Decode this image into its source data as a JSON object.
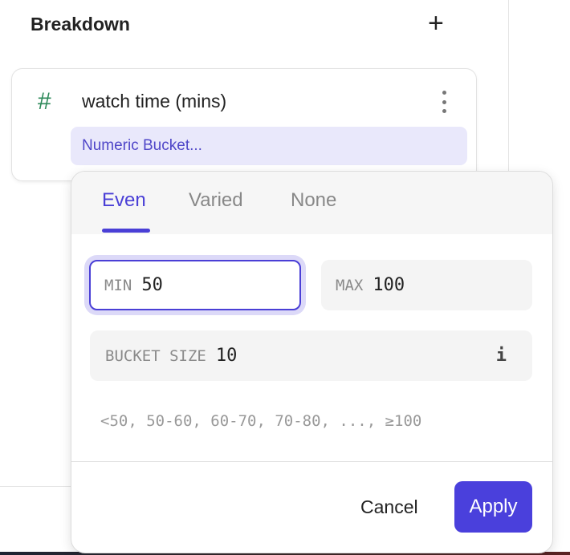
{
  "panel": {
    "title": "Breakdown",
    "add_icon": "plus-icon"
  },
  "breakdown_item": {
    "type_icon": "hash-icon",
    "type_icon_glyph": "#",
    "field": "watch time (mins)",
    "menu_icon": "kebab-icon",
    "bucket_chip": "Numeric Bucket..."
  },
  "popover": {
    "tabs": [
      {
        "label": "Even",
        "active": true
      },
      {
        "label": "Varied",
        "active": false
      },
      {
        "label": "None",
        "active": false
      }
    ],
    "min": {
      "label": "MIN",
      "value": "50"
    },
    "max": {
      "label": "MAX",
      "value": "100"
    },
    "bucket_size": {
      "label": "BUCKET SIZE",
      "value": "10",
      "info_icon": "info-icon",
      "info_glyph": "i"
    },
    "preview": "<50, 50-60, 60-70, 70-80, ..., ≥100",
    "cancel_label": "Cancel",
    "apply_label": "Apply"
  },
  "colors": {
    "accent": "#4a3fd6",
    "chip_bg": "#e9e8fb",
    "hash": "#2e8a5a"
  }
}
